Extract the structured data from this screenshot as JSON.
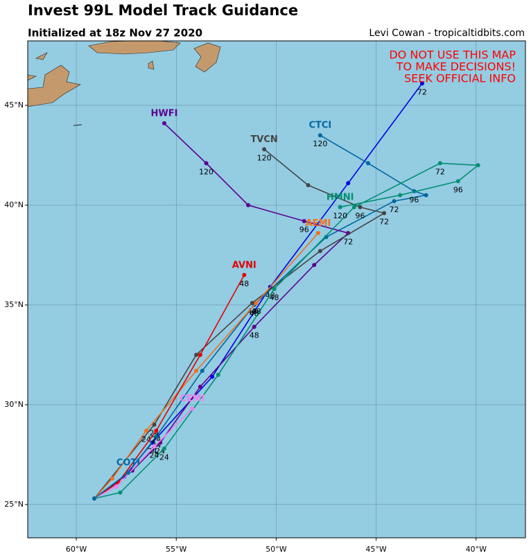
{
  "header": {
    "title": "Invest 99L Model Track Guidance",
    "subtitle": "Initialized at 18z Nov 27 2020",
    "credit": "Levi Cowan - tropicaltidbits.com"
  },
  "warning": [
    "DO NOT USE THIS MAP",
    "TO MAKE DECISIONS!",
    "SEEK OFFICIAL INFO"
  ],
  "map": {
    "xlim": [
      -62.43,
      -37.53
    ],
    "ylim": [
      23.33,
      48.23
    ],
    "xticks": [
      {
        "value": -60,
        "label": "60°W"
      },
      {
        "value": -55,
        "label": "55°W"
      },
      {
        "value": -50,
        "label": "50°W"
      },
      {
        "value": -45,
        "label": "45°W"
      },
      {
        "value": -40,
        "label": "40°W"
      }
    ],
    "yticks": [
      {
        "value": 25,
        "label": "25°N"
      },
      {
        "value": 30,
        "label": "30°N"
      },
      {
        "value": 35,
        "label": "35°N"
      },
      {
        "value": 40,
        "label": "40°N"
      },
      {
        "value": 45,
        "label": "45°N"
      }
    ],
    "grid": true
  },
  "tracks": [
    {
      "color": "#0000e0",
      "points": [
        {
          "lon": -59.1,
          "lat": 25.3
        },
        {
          "lon": -57.6,
          "lat": 26.4
        },
        {
          "lon": -56.2,
          "lat": 28.1,
          "label": "24"
        },
        {
          "lon": -53.2,
          "lat": 31.4
        },
        {
          "lon": -50.3,
          "lat": 35.9,
          "label": "48"
        },
        {
          "lon": -46.4,
          "lat": 41.1
        },
        {
          "lon": -42.7,
          "lat": 46.1,
          "label": "72"
        }
      ]
    },
    {
      "name": "CTCI",
      "color": "#0068a0",
      "points": [
        {
          "lon": -59.1,
          "lat": 25.3
        },
        {
          "lon": -57.4,
          "lat": 26.6
        },
        {
          "lon": -56.0,
          "lat": 28.4,
          "label": "24"
        },
        {
          "lon": -53.7,
          "lat": 31.7
        },
        {
          "lon": -51.1,
          "lat": 35.0,
          "label": "48"
        },
        {
          "lon": -47.5,
          "lat": 38.4
        },
        {
          "lon": -44.1,
          "lat": 40.2,
          "label": "72"
        },
        {
          "lon": -42.5,
          "lat": 40.5
        },
        {
          "lon": -43.1,
          "lat": 40.7,
          "label": "96"
        },
        {
          "lon": -45.4,
          "lat": 42.1
        },
        {
          "lon": -47.8,
          "lat": 43.5,
          "label": "120"
        }
      ]
    },
    {
      "name": "HWFI",
      "color": "#5c0090",
      "points": [
        {
          "lon": -59.1,
          "lat": 25.3
        },
        {
          "lon": -57.2,
          "lat": 26.7
        },
        {
          "lon": -55.8,
          "lat": 28.1,
          "label": "24"
        },
        {
          "lon": -53.8,
          "lat": 30.9
        },
        {
          "lon": -51.1,
          "lat": 33.9,
          "label": "48"
        },
        {
          "lon": -48.1,
          "lat": 37.0
        },
        {
          "lon": -46.4,
          "lat": 38.6,
          "label": "72"
        },
        {
          "lon": -48.6,
          "lat": 39.2,
          "label": "96"
        },
        {
          "lon": -51.4,
          "lat": 40.0
        },
        {
          "lon": -53.5,
          "lat": 42.1,
          "label": "120"
        },
        {
          "lon": -55.6,
          "lat": 44.1
        }
      ]
    },
    {
      "name": "TVCN",
      "color": "#444444",
      "points": [
        {
          "lon": -59.1,
          "lat": 25.3
        },
        {
          "lon": -56.1,
          "lat": 29.0,
          "label": "24"
        },
        {
          "lon": -54.0,
          "lat": 32.5
        },
        {
          "lon": -51.2,
          "lat": 35.1,
          "label": "48"
        },
        {
          "lon": -47.8,
          "lat": 37.7
        },
        {
          "lon": -44.6,
          "lat": 39.6,
          "label": "72"
        },
        {
          "lon": -45.8,
          "lat": 39.9,
          "label": "96"
        },
        {
          "lon": -48.4,
          "lat": 41.0
        },
        {
          "lon": -50.6,
          "lat": 42.8,
          "label": "120"
        }
      ]
    },
    {
      "name": "HMNI",
      "color": "#009070",
      "points": [
        {
          "lon": -59.1,
          "lat": 25.3
        },
        {
          "lon": -57.8,
          "lat": 25.6
        },
        {
          "lon": -55.6,
          "lat": 27.8,
          "label": "24"
        },
        {
          "lon": -52.9,
          "lat": 31.5
        },
        {
          "lon": -50.1,
          "lat": 35.8,
          "label": "48"
        },
        {
          "lon": -46.1,
          "lat": 39.9
        },
        {
          "lon": -41.8,
          "lat": 42.1,
          "label": "72"
        },
        {
          "lon": -39.9,
          "lat": 42.0
        },
        {
          "lon": -40.9,
          "lat": 41.2,
          "label": "96"
        },
        {
          "lon": -43.8,
          "lat": 40.5
        },
        {
          "lon": -46.8,
          "lat": 39.9,
          "label": "120"
        }
      ]
    },
    {
      "name": "AEMI",
      "color": "#f07020",
      "points": [
        {
          "lon": -59.1,
          "lat": 25.3
        },
        {
          "lon": -58.2,
          "lat": 26.3
        },
        {
          "lon": -56.5,
          "lat": 28.7,
          "label": "24"
        },
        {
          "lon": -54.0,
          "lat": 31.7
        },
        {
          "lon": -51.0,
          "lat": 35.1,
          "label": "48"
        },
        {
          "lon": -47.9,
          "lat": 38.6
        }
      ]
    },
    {
      "name": "AVNI",
      "color": "#e00000",
      "points": [
        {
          "lon": -59.1,
          "lat": 25.3
        },
        {
          "lon": -57.9,
          "lat": 26.1
        },
        {
          "lon": -56.0,
          "lat": 28.7,
          "label": "24"
        },
        {
          "lon": -53.8,
          "lat": 32.5
        },
        {
          "lon": -51.6,
          "lat": 36.5,
          "label": "48"
        }
      ]
    },
    {
      "name": "CEMI",
      "color": "#f080f0",
      "points": [
        {
          "lon": -59.1,
          "lat": 25.3
        },
        {
          "lon": -58.0,
          "lat": 25.9
        },
        {
          "lon": -56.1,
          "lat": 27.9,
          "label": "24"
        },
        {
          "lon": -54.2,
          "lat": 29.8
        }
      ]
    },
    {
      "name": "COTI",
      "color": "#0068a0",
      "points": [
        {
          "lon": -59.1,
          "lat": 25.3
        },
        {
          "lon": -57.4,
          "lat": 26.6
        }
      ]
    }
  ]
}
